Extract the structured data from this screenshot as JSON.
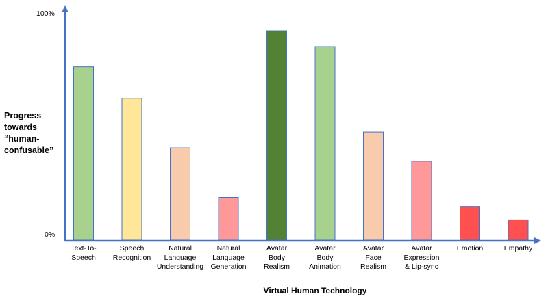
{
  "chart_data": {
    "type": "bar",
    "categories": [
      [
        "Text-To-",
        "Speech"
      ],
      [
        "Speech",
        "Recognition"
      ],
      [
        "Natural",
        "Language",
        "Understanding"
      ],
      [
        "Natural",
        "Language",
        "Generation"
      ],
      [
        "Avatar",
        "Body",
        "Realism"
      ],
      [
        "Avatar",
        "Body",
        "Animation"
      ],
      [
        "Avatar",
        "Face",
        "Realism"
      ],
      [
        "Avatar",
        "Expression",
        "& Lip-sync"
      ],
      [
        "Emotion"
      ],
      [
        "Empathy"
      ]
    ],
    "values": [
      77,
      63,
      41,
      19,
      93,
      86,
      48,
      35,
      15,
      9
    ],
    "colors": [
      "#a9d18e",
      "#ffe699",
      "#f8cbad",
      "#ff9999",
      "#548235",
      "#a9d18e",
      "#f8cbad",
      "#ff9999",
      "#ff5050",
      "#ff5050"
    ],
    "axis_color": "#4472c4",
    "ylim": [
      0,
      100
    ],
    "ytick_labels": [
      "0%",
      "100%"
    ],
    "ylabel": [
      "Progress",
      "towards",
      "“human-",
      "confusable”"
    ],
    "xlabel": "Virtual Human Technology",
    "grid": false,
    "legend": "none"
  }
}
